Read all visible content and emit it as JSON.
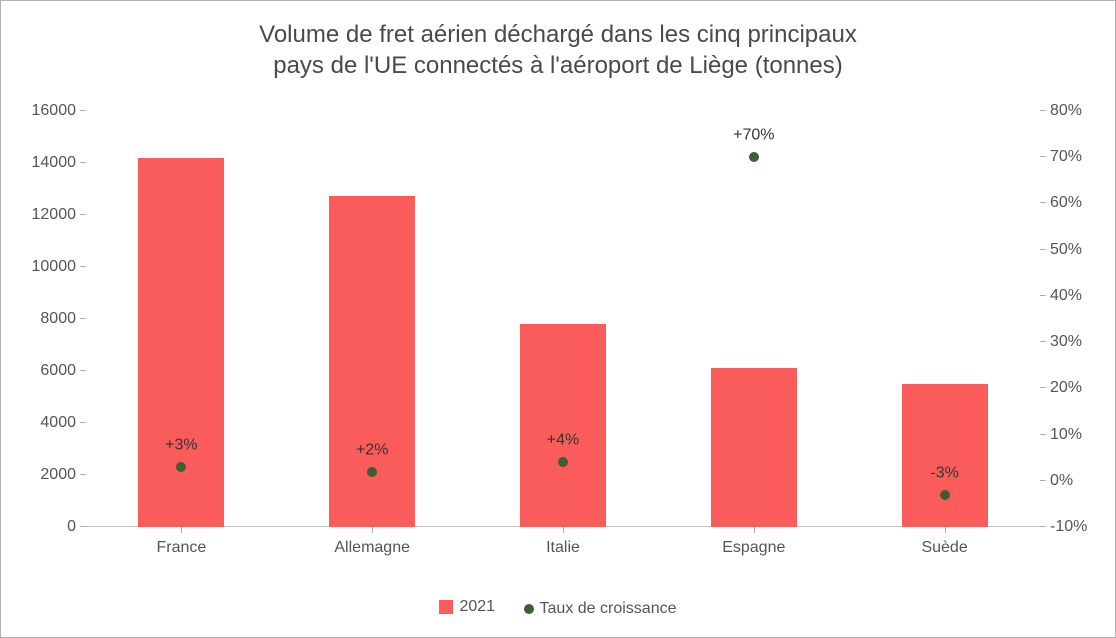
{
  "chart": {
    "type": "bar+scatter-dual-axis",
    "title": "Volume de fret aérien déchargé dans les cinq principaux\npays de l'UE connectés à l'aéroport de Liège (tonnes)",
    "title_fontsize": 24,
    "title_color": "#4a4a4a",
    "background_color": "#ffffff",
    "border_color": "#b0b0b0",
    "axis_label_color": "#555555",
    "axis_label_fontsize": 16,
    "categories": [
      "France",
      "Allemagne",
      "Italie",
      "Espagne",
      "Suède"
    ],
    "bars": {
      "series_label": "2021",
      "values": [
        14200,
        12750,
        7800,
        6100,
        5500
      ],
      "color": "#fa5c5c",
      "width_fraction": 0.45
    },
    "points": {
      "series_label": "Taux de croissance",
      "values_pct": [
        3,
        2,
        4,
        70,
        -3
      ],
      "labels": [
        "+3%",
        "+2%",
        "+4%",
        "+70%",
        "-3%"
      ],
      "color": "#3e5c36",
      "label_color": "#333333",
      "marker_size_px": 10
    },
    "y_left": {
      "min": 0,
      "max": 16000,
      "step": 2000,
      "labels": [
        "0",
        "2000",
        "4000",
        "6000",
        "8000",
        "10000",
        "12000",
        "14000",
        "16000"
      ]
    },
    "y_right": {
      "min": -10,
      "max": 80,
      "step": 10,
      "labels": [
        "-10%",
        "0%",
        "10%",
        "20%",
        "30%",
        "40%",
        "50%",
        "60%",
        "70%",
        "80%"
      ]
    },
    "legend": {
      "bar_label": "2021",
      "point_label": "Taux de croissance"
    }
  }
}
